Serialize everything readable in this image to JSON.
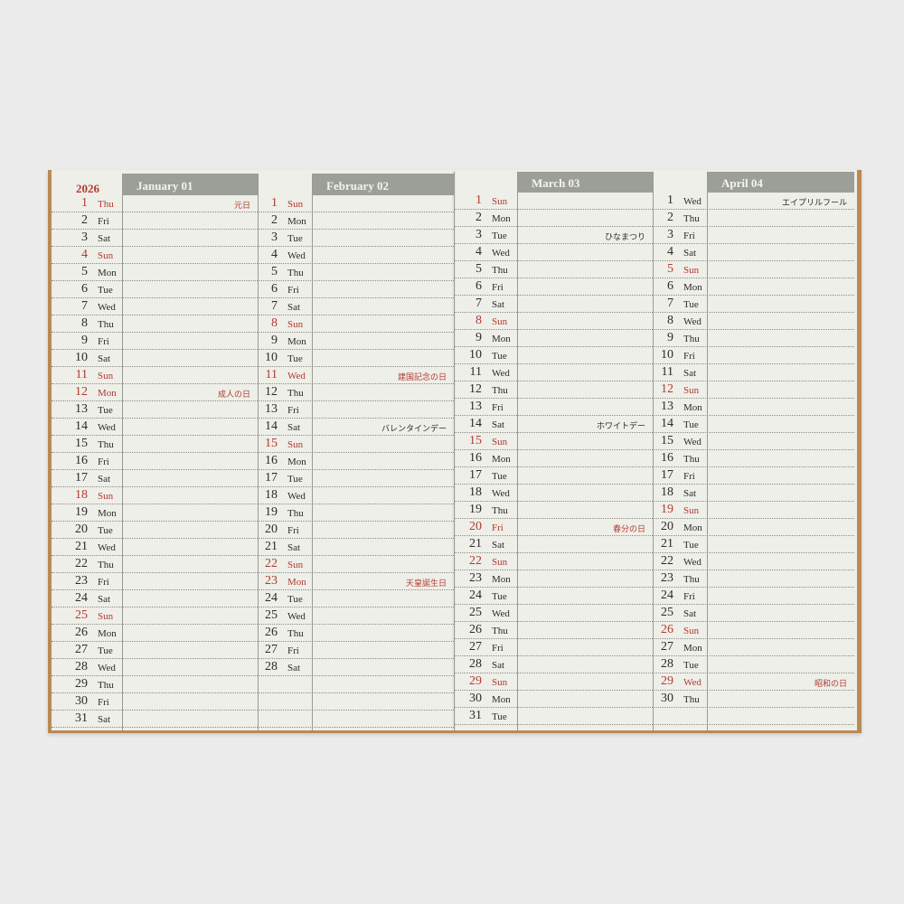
{
  "year": "2026",
  "colors": {
    "red": "#b23a32",
    "header": "#9c9f98",
    "paper": "#eeefe8",
    "cover": "#b98a55"
  },
  "months": [
    {
      "header": "January 01",
      "days": [
        {
          "n": "1",
          "d": "Thu",
          "r": true,
          "note": "元日"
        },
        {
          "n": "2",
          "d": "Fri"
        },
        {
          "n": "3",
          "d": "Sat"
        },
        {
          "n": "4",
          "d": "Sun",
          "r": true
        },
        {
          "n": "5",
          "d": "Mon"
        },
        {
          "n": "6",
          "d": "Tue"
        },
        {
          "n": "7",
          "d": "Wed"
        },
        {
          "n": "8",
          "d": "Thu"
        },
        {
          "n": "9",
          "d": "Fri"
        },
        {
          "n": "10",
          "d": "Sat"
        },
        {
          "n": "11",
          "d": "Sun",
          "r": true
        },
        {
          "n": "12",
          "d": "Mon",
          "r": true,
          "note": "成人の日"
        },
        {
          "n": "13",
          "d": "Tue"
        },
        {
          "n": "14",
          "d": "Wed"
        },
        {
          "n": "15",
          "d": "Thu"
        },
        {
          "n": "16",
          "d": "Fri"
        },
        {
          "n": "17",
          "d": "Sat"
        },
        {
          "n": "18",
          "d": "Sun",
          "r": true
        },
        {
          "n": "19",
          "d": "Mon"
        },
        {
          "n": "20",
          "d": "Tue"
        },
        {
          "n": "21",
          "d": "Wed"
        },
        {
          "n": "22",
          "d": "Thu"
        },
        {
          "n": "23",
          "d": "Fri"
        },
        {
          "n": "24",
          "d": "Sat"
        },
        {
          "n": "25",
          "d": "Sun",
          "r": true
        },
        {
          "n": "26",
          "d": "Mon"
        },
        {
          "n": "27",
          "d": "Tue"
        },
        {
          "n": "28",
          "d": "Wed"
        },
        {
          "n": "29",
          "d": "Thu"
        },
        {
          "n": "30",
          "d": "Fri"
        },
        {
          "n": "31",
          "d": "Sat"
        }
      ]
    },
    {
      "header": "February 02",
      "days": [
        {
          "n": "1",
          "d": "Sun",
          "r": true
        },
        {
          "n": "2",
          "d": "Mon"
        },
        {
          "n": "3",
          "d": "Tue"
        },
        {
          "n": "4",
          "d": "Wed"
        },
        {
          "n": "5",
          "d": "Thu"
        },
        {
          "n": "6",
          "d": "Fri"
        },
        {
          "n": "7",
          "d": "Sat"
        },
        {
          "n": "8",
          "d": "Sun",
          "r": true
        },
        {
          "n": "9",
          "d": "Mon"
        },
        {
          "n": "10",
          "d": "Tue"
        },
        {
          "n": "11",
          "d": "Wed",
          "r": true,
          "note": "建国記念の日"
        },
        {
          "n": "12",
          "d": "Thu"
        },
        {
          "n": "13",
          "d": "Fri"
        },
        {
          "n": "14",
          "d": "Sat",
          "note": "バレンタインデー"
        },
        {
          "n": "15",
          "d": "Sun",
          "r": true
        },
        {
          "n": "16",
          "d": "Mon"
        },
        {
          "n": "17",
          "d": "Tue"
        },
        {
          "n": "18",
          "d": "Wed"
        },
        {
          "n": "19",
          "d": "Thu"
        },
        {
          "n": "20",
          "d": "Fri"
        },
        {
          "n": "21",
          "d": "Sat"
        },
        {
          "n": "22",
          "d": "Sun",
          "r": true
        },
        {
          "n": "23",
          "d": "Mon",
          "r": true,
          "note": "天皇誕生日"
        },
        {
          "n": "24",
          "d": "Tue"
        },
        {
          "n": "25",
          "d": "Wed"
        },
        {
          "n": "26",
          "d": "Thu"
        },
        {
          "n": "27",
          "d": "Fri"
        },
        {
          "n": "28",
          "d": "Sat"
        }
      ]
    },
    {
      "header": "March 03",
      "days": [
        {
          "n": "1",
          "d": "Sun",
          "r": true
        },
        {
          "n": "2",
          "d": "Mon"
        },
        {
          "n": "3",
          "d": "Tue",
          "note": "ひなまつり"
        },
        {
          "n": "4",
          "d": "Wed"
        },
        {
          "n": "5",
          "d": "Thu"
        },
        {
          "n": "6",
          "d": "Fri"
        },
        {
          "n": "7",
          "d": "Sat"
        },
        {
          "n": "8",
          "d": "Sun",
          "r": true
        },
        {
          "n": "9",
          "d": "Mon"
        },
        {
          "n": "10",
          "d": "Tue"
        },
        {
          "n": "11",
          "d": "Wed"
        },
        {
          "n": "12",
          "d": "Thu"
        },
        {
          "n": "13",
          "d": "Fri"
        },
        {
          "n": "14",
          "d": "Sat",
          "note": "ホワイトデー"
        },
        {
          "n": "15",
          "d": "Sun",
          "r": true
        },
        {
          "n": "16",
          "d": "Mon"
        },
        {
          "n": "17",
          "d": "Tue"
        },
        {
          "n": "18",
          "d": "Wed"
        },
        {
          "n": "19",
          "d": "Thu"
        },
        {
          "n": "20",
          "d": "Fri",
          "r": true,
          "note": "春分の日"
        },
        {
          "n": "21",
          "d": "Sat"
        },
        {
          "n": "22",
          "d": "Sun",
          "r": true
        },
        {
          "n": "23",
          "d": "Mon"
        },
        {
          "n": "24",
          "d": "Tue"
        },
        {
          "n": "25",
          "d": "Wed"
        },
        {
          "n": "26",
          "d": "Thu"
        },
        {
          "n": "27",
          "d": "Fri"
        },
        {
          "n": "28",
          "d": "Sat"
        },
        {
          "n": "29",
          "d": "Sun",
          "r": true
        },
        {
          "n": "30",
          "d": "Mon"
        },
        {
          "n": "31",
          "d": "Tue"
        }
      ]
    },
    {
      "header": "April 04",
      "days": [
        {
          "n": "1",
          "d": "Wed",
          "note": "エイプリルフール"
        },
        {
          "n": "2",
          "d": "Thu"
        },
        {
          "n": "3",
          "d": "Fri"
        },
        {
          "n": "4",
          "d": "Sat"
        },
        {
          "n": "5",
          "d": "Sun",
          "r": true
        },
        {
          "n": "6",
          "d": "Mon"
        },
        {
          "n": "7",
          "d": "Tue"
        },
        {
          "n": "8",
          "d": "Wed"
        },
        {
          "n": "9",
          "d": "Thu"
        },
        {
          "n": "10",
          "d": "Fri"
        },
        {
          "n": "11",
          "d": "Sat"
        },
        {
          "n": "12",
          "d": "Sun",
          "r": true
        },
        {
          "n": "13",
          "d": "Mon"
        },
        {
          "n": "14",
          "d": "Tue"
        },
        {
          "n": "15",
          "d": "Wed"
        },
        {
          "n": "16",
          "d": "Thu"
        },
        {
          "n": "17",
          "d": "Fri"
        },
        {
          "n": "18",
          "d": "Sat"
        },
        {
          "n": "19",
          "d": "Sun",
          "r": true
        },
        {
          "n": "20",
          "d": "Mon"
        },
        {
          "n": "21",
          "d": "Tue"
        },
        {
          "n": "22",
          "d": "Wed"
        },
        {
          "n": "23",
          "d": "Thu"
        },
        {
          "n": "24",
          "d": "Fri"
        },
        {
          "n": "25",
          "d": "Sat"
        },
        {
          "n": "26",
          "d": "Sun",
          "r": true
        },
        {
          "n": "27",
          "d": "Mon"
        },
        {
          "n": "28",
          "d": "Tue"
        },
        {
          "n": "29",
          "d": "Wed",
          "r": true,
          "note": "昭和の日"
        },
        {
          "n": "30",
          "d": "Thu"
        }
      ]
    }
  ]
}
